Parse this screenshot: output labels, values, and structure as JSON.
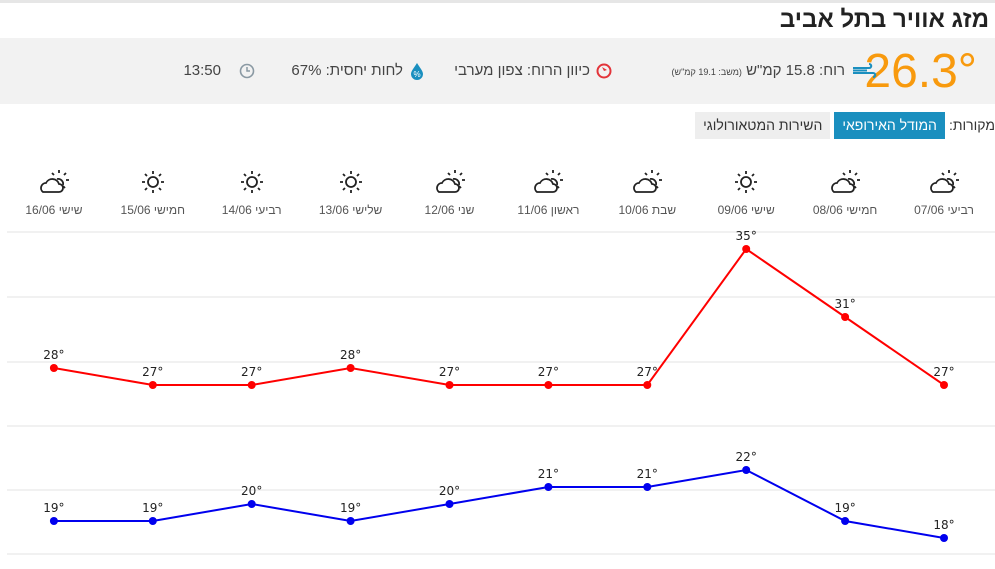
{
  "header": {
    "title": "מזג אוויר בתל אביב"
  },
  "current": {
    "temperature": "26.3°",
    "wind_label": "רוח: 15.8 קמ\"ש",
    "gust_label": "(משב: 19.1 קמ\"ש)",
    "wind_direction": "כיוון הרוח: צפון מערבי",
    "humidity": "לחות יחסית: 67%",
    "time": "13:50",
    "icons": {
      "wind": "wind-icon",
      "direction": "compass-icon",
      "humidity": "humidity-drop-icon",
      "time": "clock-icon"
    }
  },
  "sources": {
    "label": "מקורות:",
    "options": [
      {
        "label": "המודל האירופאי",
        "active": true
      },
      {
        "label": "השירות המטאורולוגי",
        "active": false
      }
    ]
  },
  "colors": {
    "accent": "#1a8fbf",
    "temperature": "#f89a0e",
    "high": "#ff0000",
    "low": "#0000ee"
  },
  "chart_data": {
    "type": "line",
    "categories": [
      "רביעי 07/06",
      "חמישי 08/06",
      "שישי 09/06",
      "שבת 10/06",
      "ראשון 11/06",
      "שני 12/06",
      "שלישי 13/06",
      "רביעי 14/06",
      "חמישי 15/06",
      "שישי 16/06"
    ],
    "icons": [
      "partly-cloudy-icon",
      "partly-cloudy-icon",
      "sun-icon",
      "partly-cloudy-icon",
      "partly-cloudy-icon",
      "partly-cloudy-icon",
      "sun-icon",
      "sun-icon",
      "sun-icon",
      "partly-cloudy-icon"
    ],
    "series": [
      {
        "values": [
          27,
          31,
          35,
          27,
          27,
          27,
          28,
          27,
          27,
          28
        ],
        "color": "#ff0000"
      },
      {
        "values": [
          18,
          19,
          22,
          21,
          21,
          20,
          19,
          20,
          19,
          19
        ],
        "color": "#0000ee"
      }
    ],
    "x_direction": "right-to-left",
    "grid": true
  }
}
